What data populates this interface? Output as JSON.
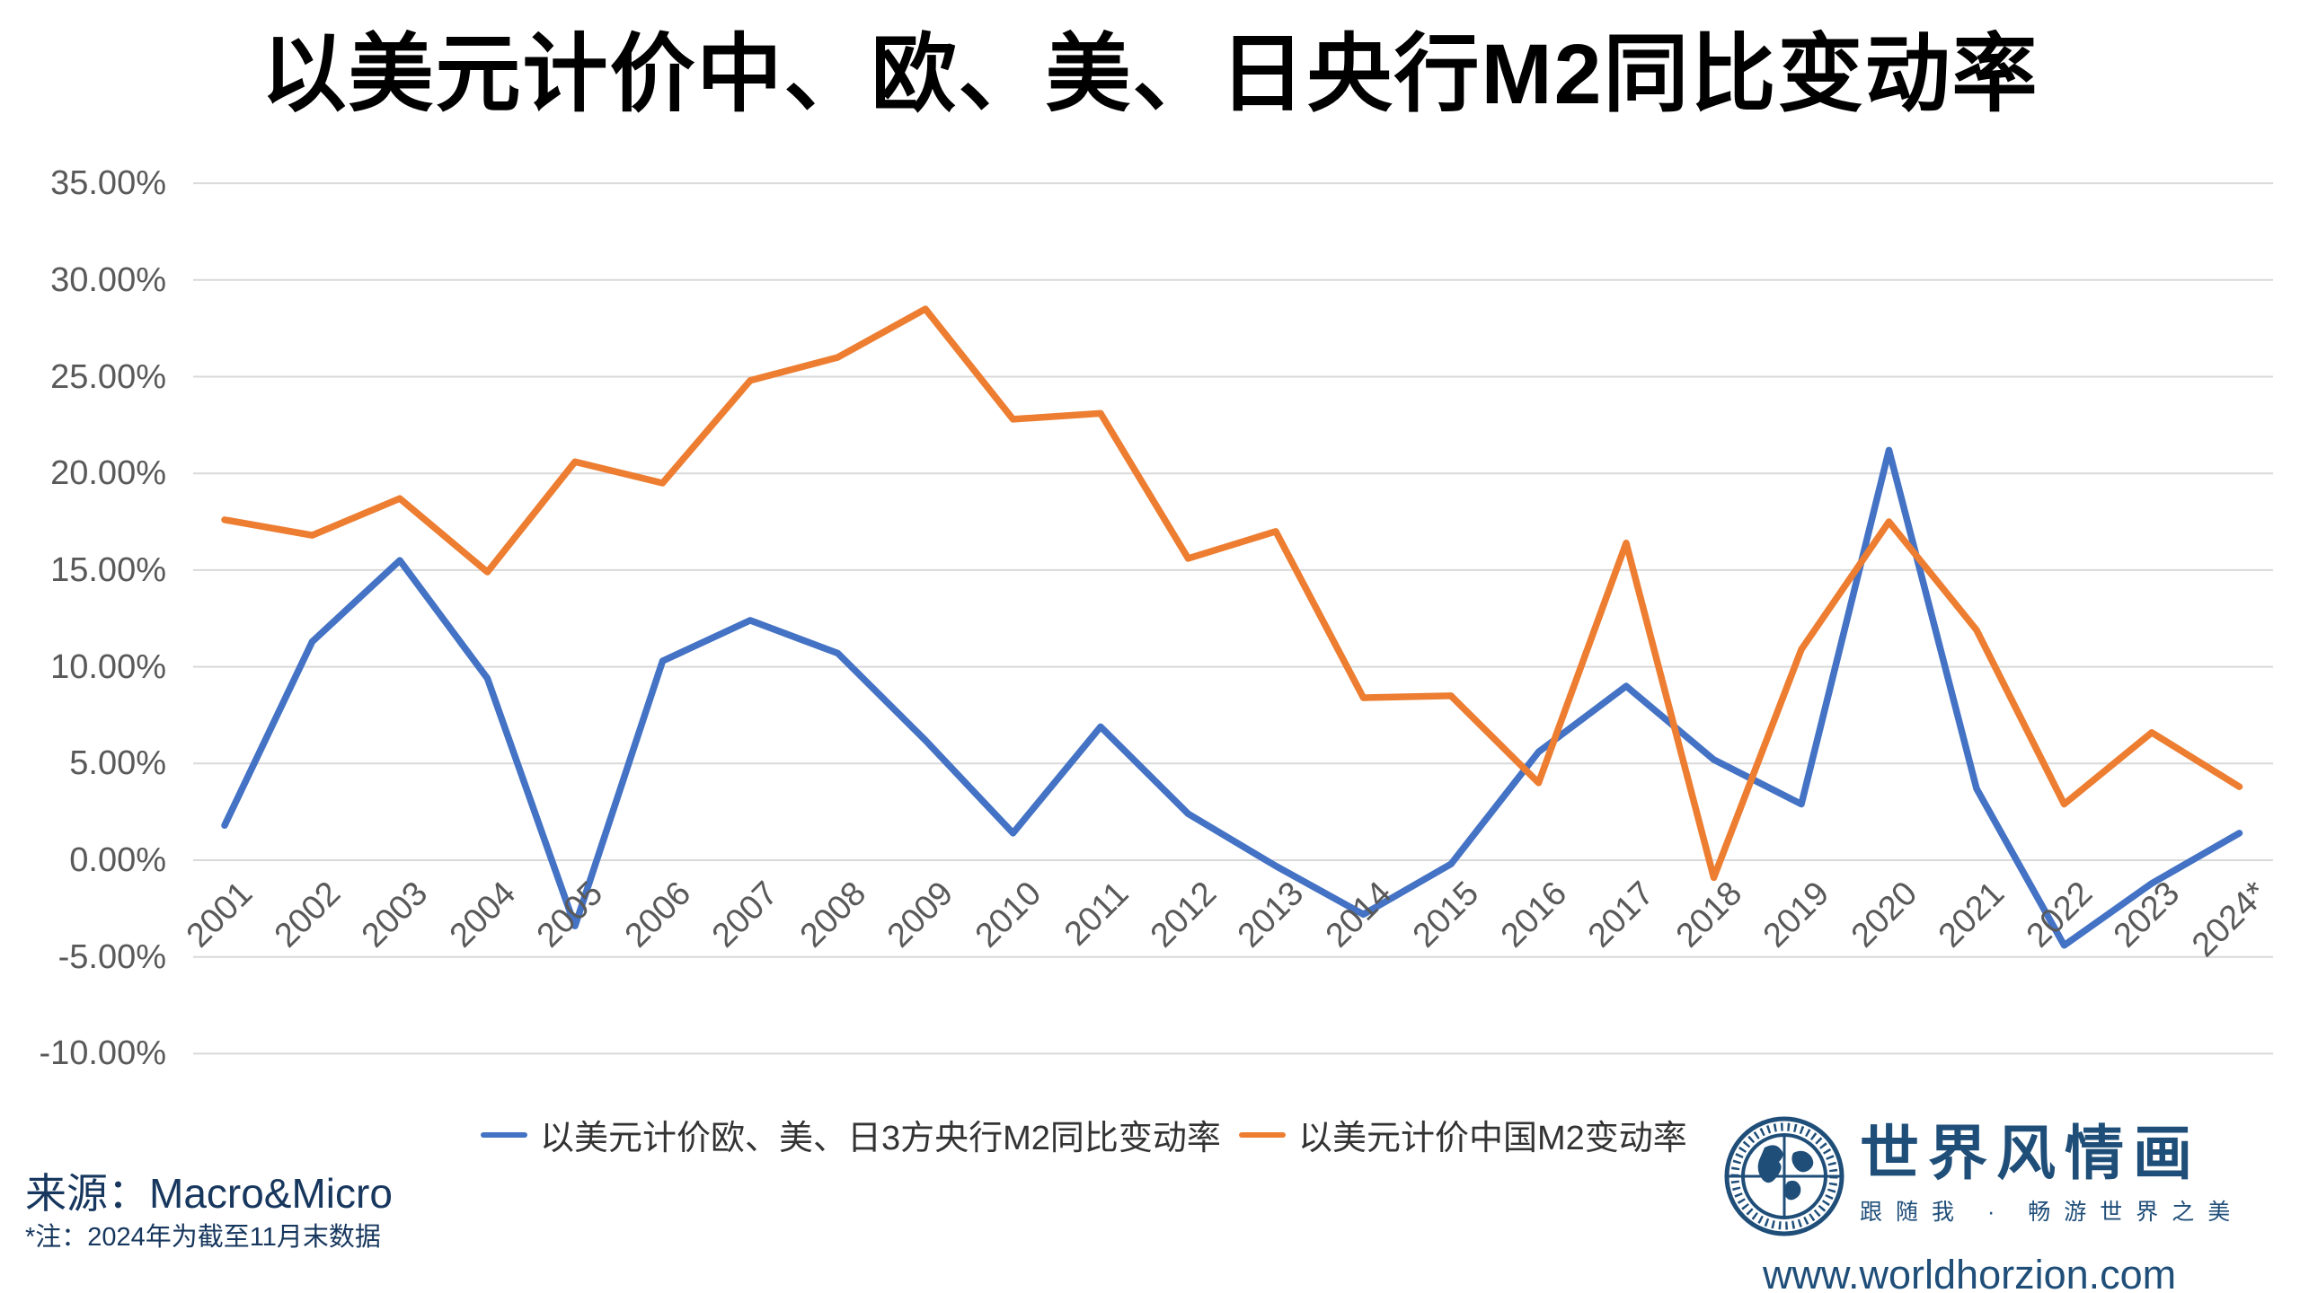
{
  "chart_data": {
    "type": "line",
    "title": "以美元计价中、欧、美、日央行M2同比变动率",
    "x": [
      "2001",
      "2002",
      "2003",
      "2004",
      "2005",
      "2006",
      "2007",
      "2008",
      "2009",
      "2010",
      "2011",
      "2012",
      "2013",
      "2014",
      "2015",
      "2016",
      "2017",
      "2018",
      "2019",
      "2020",
      "2021",
      "2022",
      "2023",
      "2024*"
    ],
    "series": [
      {
        "name": "以美元计价欧、美、日3方央行M2同比变动率",
        "color": "#4472C4",
        "values": [
          1.8,
          11.3,
          15.5,
          9.4,
          -3.4,
          10.3,
          12.4,
          10.7,
          6.2,
          1.4,
          6.9,
          2.4,
          -0.3,
          -2.8,
          -0.2,
          5.6,
          9.0,
          5.2,
          2.9,
          21.2,
          3.7,
          -4.4,
          -1.2,
          1.4
        ]
      },
      {
        "name": "以美元计价中国M2变动率",
        "color": "#ED7D31",
        "values": [
          17.6,
          16.8,
          18.7,
          14.9,
          20.6,
          19.5,
          24.8,
          26.0,
          28.5,
          22.8,
          23.1,
          15.6,
          17.0,
          8.4,
          8.5,
          4.0,
          16.4,
          -0.9,
          10.9,
          17.5,
          11.9,
          2.9,
          6.6,
          3.8
        ]
      }
    ],
    "y_axis": {
      "ticks": [
        {
          "label": "35.00%",
          "value": 35
        },
        {
          "label": "30.00%",
          "value": 30
        },
        {
          "label": "25.00%",
          "value": 25
        },
        {
          "label": "20.00%",
          "value": 20
        },
        {
          "label": "15.00%",
          "value": 15
        },
        {
          "label": "10.00%",
          "value": 10
        },
        {
          "label": "5.00%",
          "value": 5
        },
        {
          "label": "0.00%",
          "value": 0
        },
        {
          "label": "-5.00%",
          "value": -5
        },
        {
          "label": "-10.00%",
          "value": -10
        }
      ],
      "ylim": [
        -10,
        35
      ]
    },
    "grid": true,
    "legend_position": "bottom"
  },
  "colors": {
    "grid": "#D9D9D9",
    "axis_text": "#595959",
    "brand_blue": "#1F4E79",
    "source_blue": "#17375E"
  },
  "source": {
    "main": "来源：Macro&Micro",
    "note": "*注：2024年为截至11月末数据"
  },
  "brand": {
    "name": "世界风情画",
    "tagline": "跟随我 · 畅游世界之美",
    "site": "www.worldhorzion.com"
  }
}
